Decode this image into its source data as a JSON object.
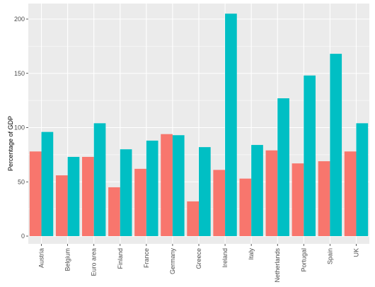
{
  "chart_data": {
    "type": "bar",
    "title": "",
    "xlabel": "",
    "ylabel": "Percentage of GDP",
    "ylim": [
      0,
      212
    ],
    "yticks": [
      0,
      50,
      100,
      150,
      200
    ],
    "categories": [
      "Austria",
      "Belgium",
      "Euro area",
      "Finland",
      "France",
      "Germany",
      "Greece",
      "Ireland",
      "Italy",
      "Netherlands",
      "Portugal",
      "Spain",
      "UK"
    ],
    "series": [
      {
        "color": "#F8766D",
        "values": [
          78,
          56,
          73,
          45,
          62,
          94,
          32,
          61,
          53,
          79,
          67,
          69,
          78
        ]
      },
      {
        "color": "#00BFC4",
        "values": [
          96,
          73,
          104,
          80,
          88,
          93,
          82,
          205,
          84,
          127,
          148,
          168,
          104
        ]
      }
    ],
    "grid": true,
    "legend": "none",
    "panel_color": "#EBEBEB",
    "grid_color": "#FFFFFF"
  }
}
